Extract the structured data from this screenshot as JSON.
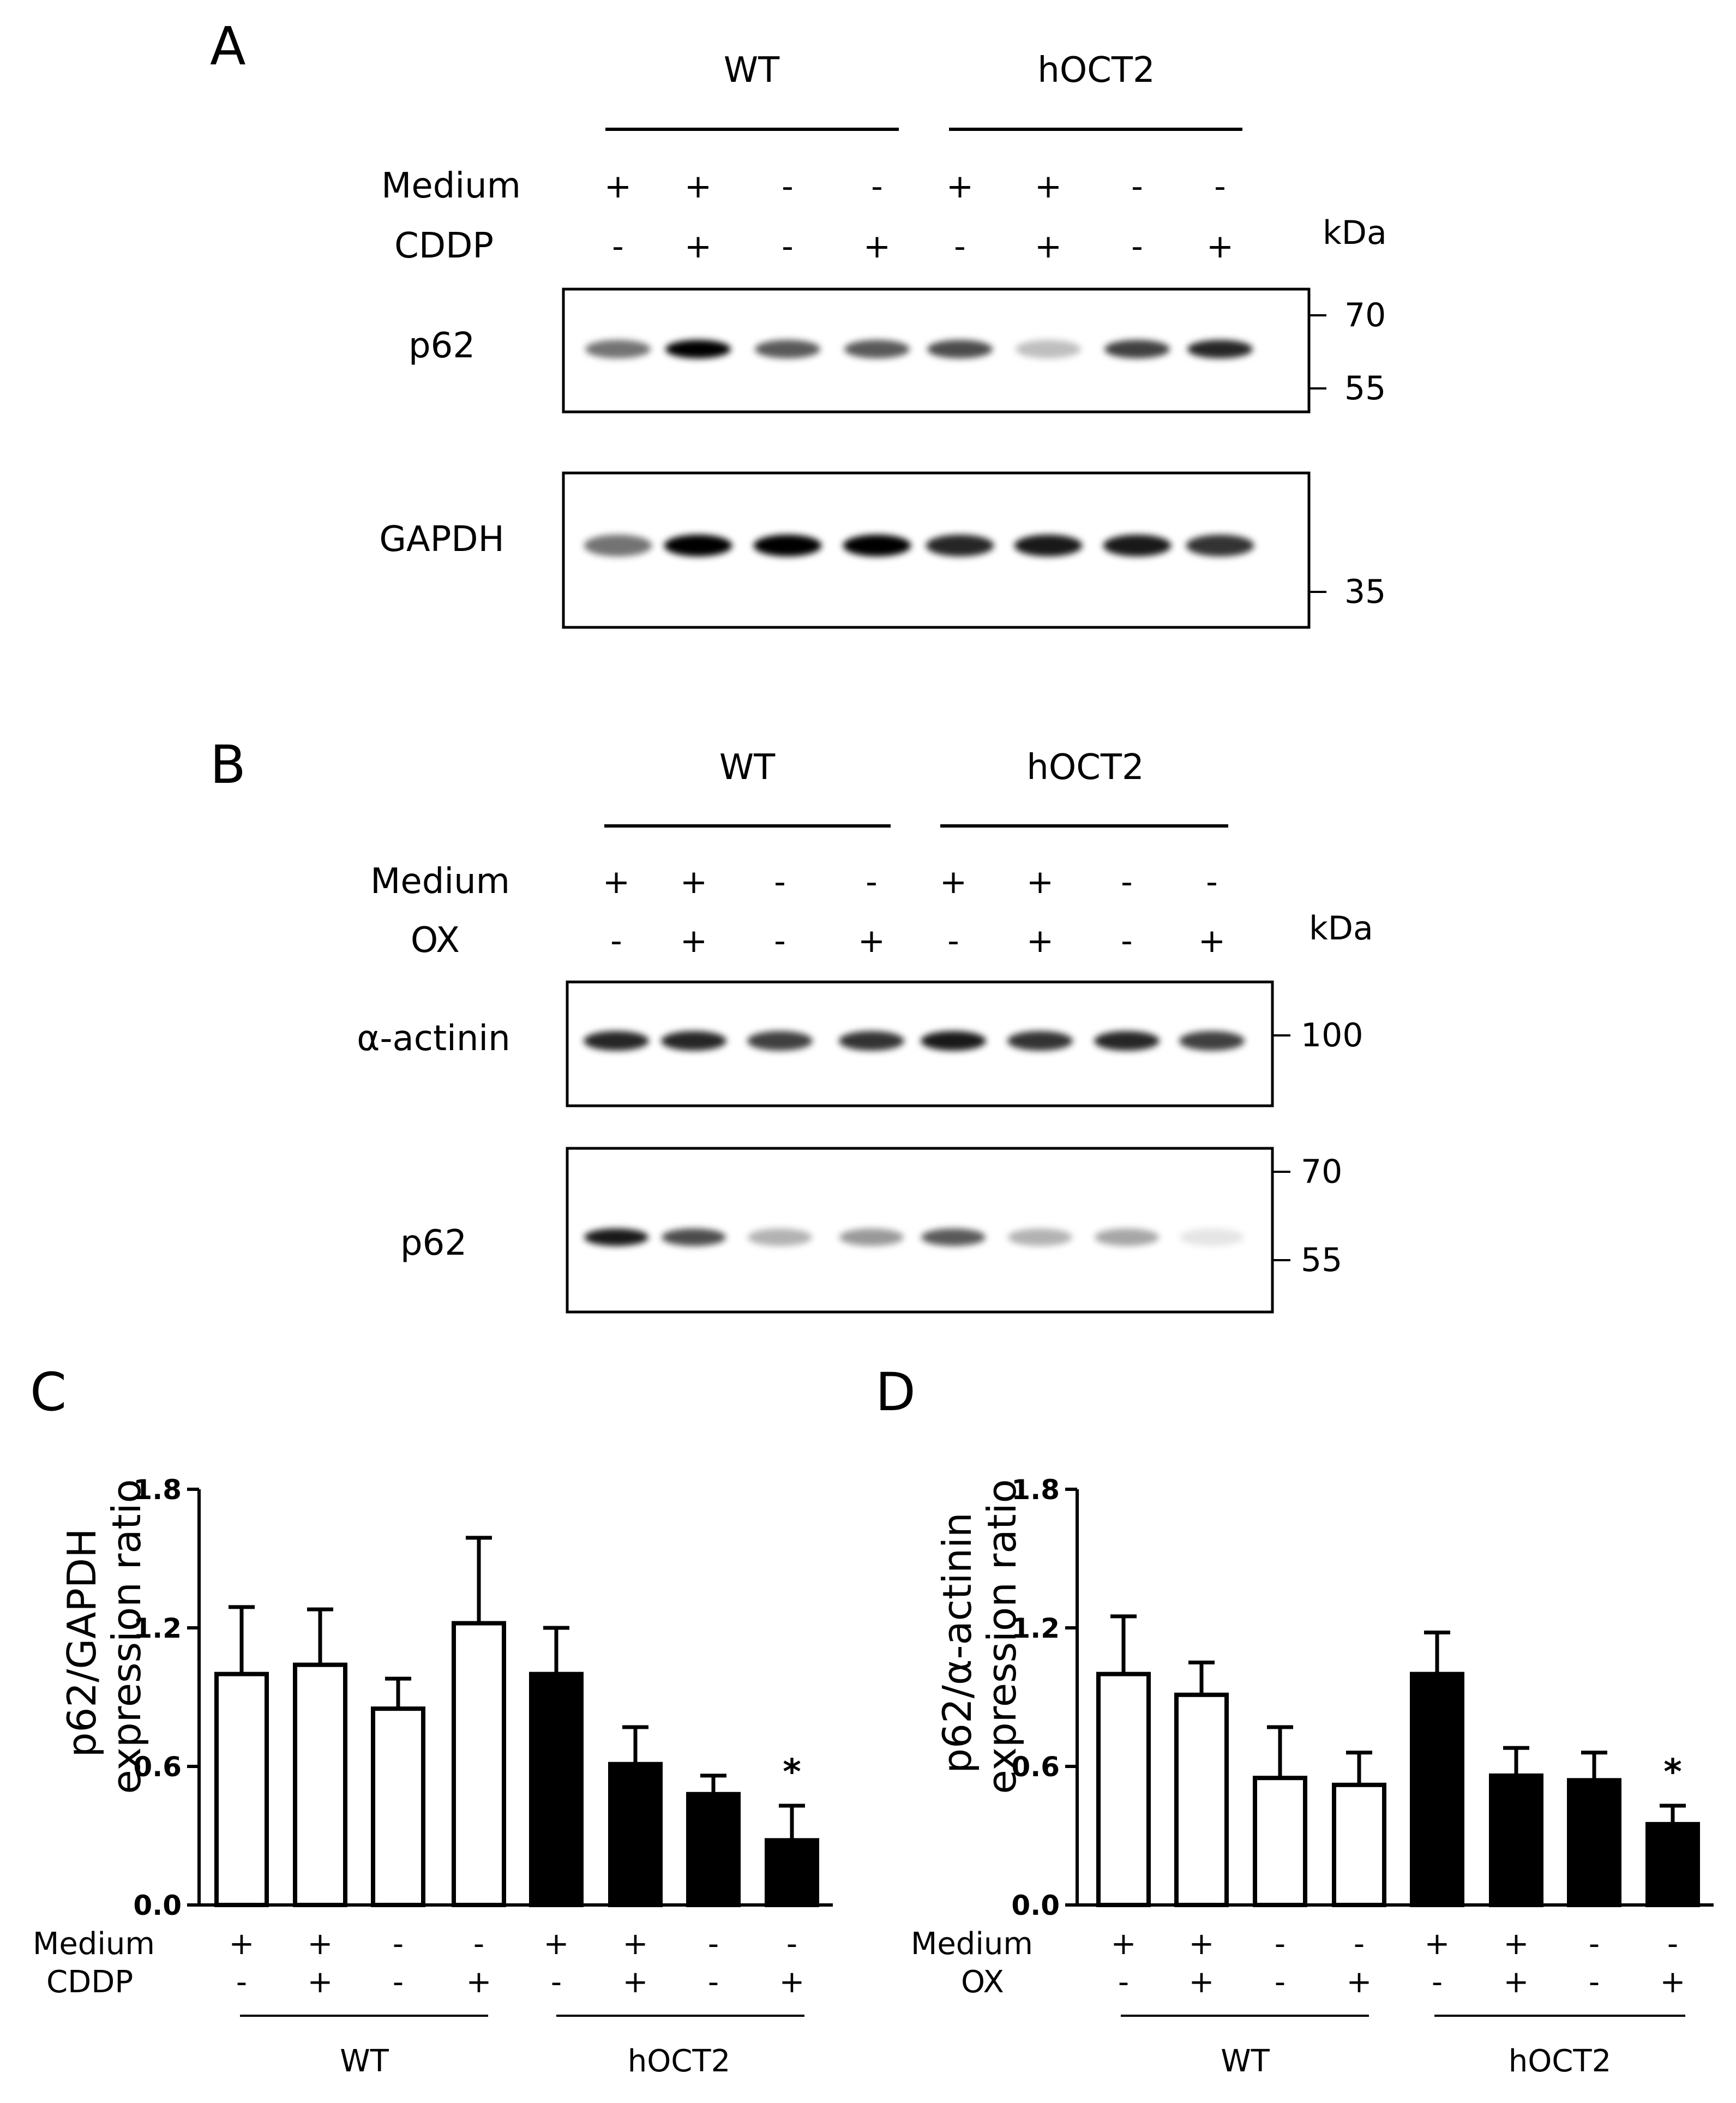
{
  "panels": {
    "A": "A",
    "B": "B",
    "C": "C",
    "D": "D"
  },
  "group_labels": {
    "wt": "WT",
    "hoct2": "hOCT2"
  },
  "kda": "kDa",
  "blot_A": {
    "rows": [
      {
        "label": "Medium",
        "values": [
          "+",
          "+",
          "-",
          "-",
          "+",
          "+",
          "-",
          "-"
        ]
      },
      {
        "label": "CDDP",
        "values": [
          "-",
          "+",
          "-",
          "+",
          "-",
          "+",
          "-",
          "+"
        ]
      }
    ],
    "strips": [
      {
        "label": "p62",
        "markers": [
          "70",
          "55"
        ],
        "band_intensity": [
          0.55,
          1.0,
          0.65,
          0.65,
          0.7,
          0.25,
          0.75,
          0.85
        ]
      },
      {
        "label": "GAPDH",
        "markers": [
          "35"
        ],
        "band_intensity": [
          0.55,
          1.0,
          1.0,
          1.0,
          0.85,
          0.9,
          0.9,
          0.8
        ]
      }
    ]
  },
  "blot_B": {
    "rows": [
      {
        "label": "Medium",
        "values": [
          "+",
          "+",
          "-",
          "-",
          "+",
          "+",
          "-",
          "-"
        ]
      },
      {
        "label": "OX",
        "values": [
          "-",
          "+",
          "-",
          "+",
          "-",
          "+",
          "-",
          "+"
        ]
      }
    ],
    "strips": [
      {
        "label": "α-actinin",
        "markers": [
          "100"
        ],
        "band_intensity": [
          0.85,
          0.85,
          0.75,
          0.8,
          0.9,
          0.8,
          0.85,
          0.75
        ]
      },
      {
        "label": "p62",
        "markers": [
          "70",
          "55"
        ],
        "band_intensity": [
          0.9,
          0.7,
          0.3,
          0.4,
          0.65,
          0.3,
          0.35,
          0.1
        ]
      }
    ]
  },
  "chart_data": [
    {
      "panel": "C",
      "type": "bar",
      "ylabel": "p62/GAPDH expression ratio",
      "ylabel_lines": [
        "p62/GAPDH",
        "expression ratio"
      ],
      "ylim": [
        0,
        1.8
      ],
      "yticks": [
        "0.0",
        "0.6",
        "1.2",
        "1.8"
      ],
      "ytick_values": [
        0,
        0.6,
        1.2,
        1.8
      ],
      "row_labels": [
        "Medium",
        "CDDP"
      ],
      "medium": [
        "+",
        "+",
        "-",
        "-",
        "+",
        "+",
        "-",
        "-"
      ],
      "treatment": [
        "-",
        "+",
        "-",
        "+",
        "-",
        "+",
        "-",
        "+"
      ],
      "groups": [
        "WT",
        "hOCT2"
      ],
      "values": [
        1.0,
        1.04,
        0.85,
        1.22,
        1.0,
        0.61,
        0.48,
        0.28
      ],
      "errors": [
        0.29,
        0.24,
        0.13,
        0.37,
        0.2,
        0.16,
        0.08,
        0.15
      ],
      "fill": [
        "#ffffff",
        "#ffffff",
        "#ffffff",
        "#ffffff",
        "#000000",
        "#000000",
        "#000000",
        "#000000"
      ],
      "annotations": [
        {
          "bar": 7,
          "text": "*"
        }
      ]
    },
    {
      "panel": "D",
      "type": "bar",
      "ylabel": "p62/α-actinin expression ratio",
      "ylabel_lines": [
        "p62/α-actinin",
        "expression ratio"
      ],
      "ylim": [
        0,
        1.8
      ],
      "yticks": [
        "0.0",
        "0.6",
        "1.2",
        "1.8"
      ],
      "ytick_values": [
        0,
        0.6,
        1.2,
        1.8
      ],
      "row_labels": [
        "Medium",
        "OX"
      ],
      "medium": [
        "+",
        "+",
        "-",
        "-",
        "+",
        "+",
        "-",
        "-"
      ],
      "treatment": [
        "-",
        "+",
        "-",
        "+",
        "-",
        "+",
        "-",
        "+"
      ],
      "groups": [
        "WT",
        "hOCT2"
      ],
      "values": [
        1.0,
        0.91,
        0.55,
        0.52,
        1.0,
        0.56,
        0.54,
        0.35
      ],
      "errors": [
        0.25,
        0.14,
        0.22,
        0.14,
        0.18,
        0.12,
        0.12,
        0.08
      ],
      "fill": [
        "#ffffff",
        "#ffffff",
        "#ffffff",
        "#ffffff",
        "#000000",
        "#000000",
        "#000000",
        "#000000"
      ],
      "annotations": [
        {
          "bar": 7,
          "text": "*"
        }
      ]
    }
  ]
}
